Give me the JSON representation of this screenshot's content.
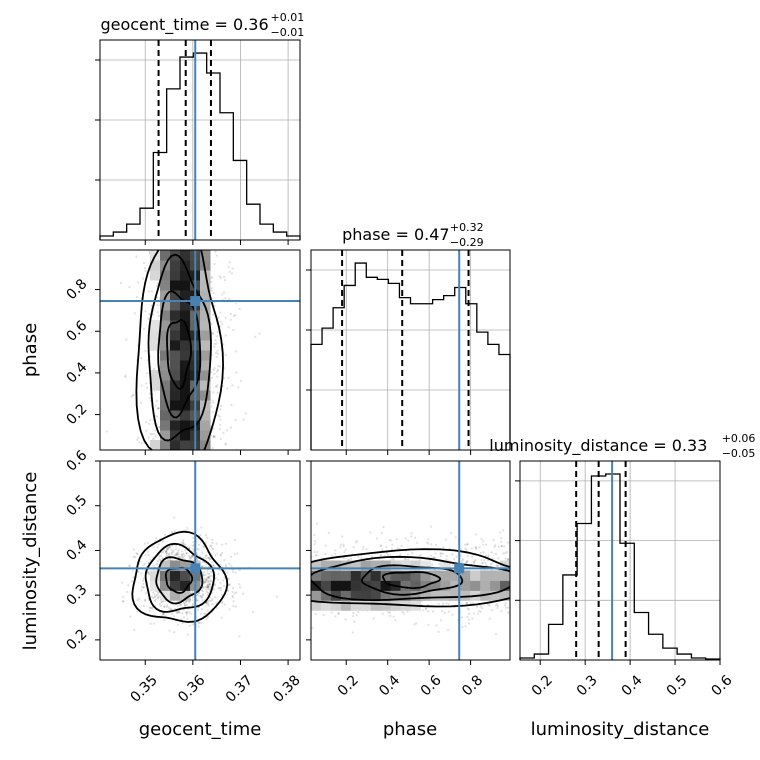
{
  "chart_data": {
    "type": "corner",
    "parameters": [
      "geocent_time",
      "phase",
      "luminosity_distance"
    ],
    "truth": {
      "geocent_time": 0.3605,
      "phase": 0.745,
      "luminosity_distance": 0.36
    },
    "truth_color": "#4682b4",
    "titles": {
      "geocent_time": {
        "name": "geocent_time",
        "median": "0.36",
        "plus": "+0.01",
        "minus": "−0.01"
      },
      "phase": {
        "name": "phase",
        "median": "0.47",
        "plus": "+0.32",
        "minus": "−0.29"
      },
      "luminosity_distance": {
        "name": "luminosity_distance",
        "median": "0.33",
        "plus": "+0.06",
        "minus": "−0.05"
      }
    },
    "ranges": {
      "geocent_time": [
        0.3405,
        0.3825
      ],
      "phase": [
        0.03,
        0.99
      ],
      "luminosity_distance": [
        0.155,
        0.6
      ]
    },
    "ticks": {
      "geocent_time": {
        "values": [
          0.35,
          0.36,
          0.37,
          0.38
        ],
        "labels": [
          "0.35",
          "0.36",
          "0.37",
          "0.38"
        ]
      },
      "phase": {
        "values": [
          0.2,
          0.4,
          0.6,
          0.8
        ],
        "labels": [
          "0.2",
          "0.4",
          "0.6",
          "0.8"
        ]
      },
      "luminosity_distance": {
        "values": [
          0.2,
          0.3,
          0.4,
          0.5,
          0.6
        ],
        "labels": [
          "0.2",
          "0.3",
          "0.4",
          "0.5",
          "0.6"
        ]
      }
    },
    "quantiles": {
      "geocent_time": [
        0.3528,
        0.3585,
        0.3638
      ],
      "phase": [
        0.18,
        0.47,
        0.79
      ],
      "luminosity_distance": [
        0.28,
        0.33,
        0.39
      ]
    },
    "histograms": {
      "geocent_time": [
        1,
        2,
        4,
        8,
        22,
        38,
        46,
        47,
        42,
        32,
        20,
        9,
        4,
        2,
        1
      ],
      "phase": [
        52,
        60,
        70,
        81,
        92,
        85,
        84,
        82,
        75,
        72,
        72,
        74,
        76,
        80,
        72,
        58,
        52,
        47
      ],
      "luminosity_distance": [
        1,
        3,
        18,
        43,
        69,
        93,
        94,
        59,
        24,
        13,
        6,
        3,
        1,
        0.5
      ]
    },
    "axis_labels": {
      "geocent_time": "geocent_time",
      "phase": "phase",
      "luminosity_distance": "luminosity_distance"
    },
    "scatter_seed": 7
  }
}
